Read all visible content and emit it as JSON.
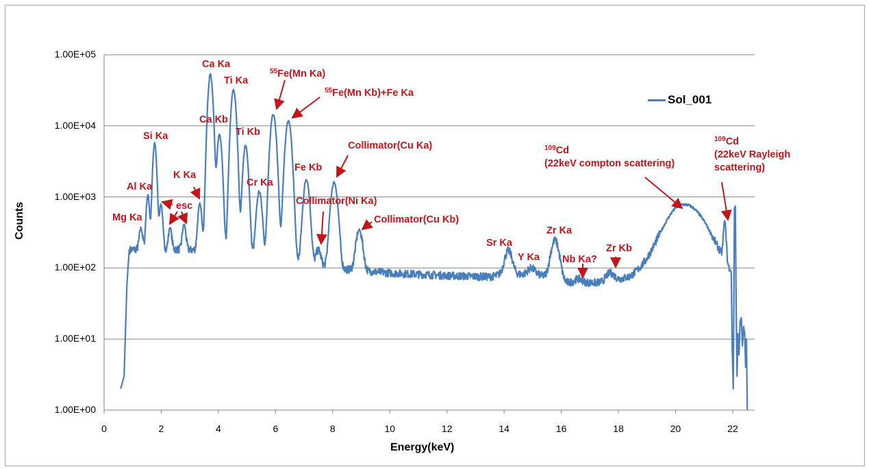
{
  "chart_data": {
    "type": "line",
    "title": "",
    "xlabel": "Energy(keV)",
    "ylabel": "Counts",
    "xscale": "linear",
    "yscale": "log",
    "xlim": [
      0,
      22.77
    ],
    "ylim": [
      1,
      100000
    ],
    "xticks": [
      "0",
      "2",
      "4",
      "6",
      "8",
      "10",
      "12",
      "14",
      "16",
      "18",
      "20",
      "22"
    ],
    "yticks": [
      "1.00E+00",
      "1.00E+01",
      "1.00E+02",
      "1.00E+03",
      "1.00E+04",
      "1.00E+05"
    ],
    "grid": "horizontal",
    "legend": {
      "placement": "top-right",
      "entries": [
        "Sol_001"
      ]
    },
    "series": [
      {
        "name": "Sol_001",
        "color": "#4a7ebb",
        "start_keV": 0.58,
        "end_keV": 21.95,
        "background": [
          [
            0.58,
            2
          ],
          [
            0.7,
            3
          ],
          [
            0.8,
            60
          ],
          [
            0.88,
            180
          ],
          [
            1.5,
            190
          ],
          [
            3,
            180
          ],
          [
            4,
            170
          ],
          [
            6,
            140
          ],
          [
            7.3,
            110
          ],
          [
            8.5,
            95
          ],
          [
            10,
            85
          ],
          [
            12,
            78
          ],
          [
            13.5,
            75
          ],
          [
            14,
            82
          ],
          [
            15.2,
            80
          ],
          [
            16.2,
            62
          ],
          [
            17.5,
            62
          ],
          [
            18.4,
            75
          ],
          [
            19,
            110
          ],
          [
            19.6,
            180
          ],
          [
            20,
            250
          ],
          [
            21,
            180
          ],
          [
            21.6,
            120
          ],
          [
            21.95,
            80
          ]
        ],
        "peaks": [
          {
            "label": "Mg Ka",
            "keV": 1.29,
            "counts": 365,
            "sigma": 0.05
          },
          {
            "label": "Al Ka",
            "keV": 1.53,
            "counts": 1050,
            "sigma": 0.05
          },
          {
            "label": "Si Ka",
            "keV": 1.77,
            "counts": 5600,
            "sigma": 0.055
          },
          {
            "label": "esc",
            "keV": 1.99,
            "counts": 790,
            "sigma": 0.05
          },
          {
            "label": "esc",
            "keV": 2.31,
            "counts": 370,
            "sigma": 0.05
          },
          {
            "label": "esc",
            "keV": 2.8,
            "counts": 410,
            "sigma": 0.055
          },
          {
            "label": "K Ka",
            "keV": 3.35,
            "counts": 790,
            "sigma": 0.06
          },
          {
            "label": "Ca Ka",
            "keV": 3.72,
            "counts": 52000,
            "sigma": 0.07
          },
          {
            "label": "Ca Kb",
            "keV": 4.04,
            "counts": 7400,
            "sigma": 0.07
          },
          {
            "label": "Ti Ka",
            "keV": 4.53,
            "counts": 32000,
            "sigma": 0.075
          },
          {
            "label": "Ti Kb",
            "keV": 4.95,
            "counts": 5200,
            "sigma": 0.075
          },
          {
            "label": "Cr Ka",
            "keV": 5.43,
            "counts": 1190,
            "sigma": 0.08
          },
          {
            "label": "55Fe(Mn Ka)",
            "keV": 5.92,
            "counts": 14800,
            "sigma": 0.085
          },
          {
            "label": "55Fe(Mn Kb)+Fe Ka",
            "keV": 6.45,
            "counts": 11600,
            "sigma": 0.09
          },
          {
            "label": "Fe Kb",
            "keV": 7.08,
            "counts": 1770,
            "sigma": 0.09
          },
          {
            "label": "Collimator(Ni Ka)",
            "keV": 7.5,
            "counts": 180,
            "sigma": 0.08
          },
          {
            "label": "Collimator(Cu Ka)",
            "keV": 8.05,
            "counts": 1600,
            "sigma": 0.1
          },
          {
            "label": "Collimator(Cu Kb)",
            "keV": 8.93,
            "counts": 340,
            "sigma": 0.1
          },
          {
            "label": "Sr Ka",
            "keV": 14.15,
            "counts": 175,
            "sigma": 0.12
          },
          {
            "label": "Y Ka",
            "keV": 14.95,
            "counts": 100,
            "sigma": 0.12
          },
          {
            "label": "Zr Ka",
            "keV": 15.78,
            "counts": 245,
            "sigma": 0.13
          },
          {
            "label": "Nb Ka?",
            "keV": 16.6,
            "counts": 70,
            "sigma": 0.13
          },
          {
            "label": "Zr Kb",
            "keV": 17.7,
            "counts": 85,
            "sigma": 0.14
          },
          {
            "label": "Compton",
            "keV": 20.35,
            "counts": 780,
            "sigma": 0.55
          },
          {
            "label": "Rayleigh",
            "keV": 21.72,
            "counts": 430,
            "sigma": 0.04
          }
        ],
        "tail": [
          [
            21.95,
            80
          ],
          [
            21.98,
            8
          ],
          [
            22.02,
            2
          ],
          [
            22.06,
            700
          ],
          [
            22.09,
            740
          ],
          [
            22.12,
            30
          ],
          [
            22.15,
            3
          ],
          [
            22.18,
            12
          ],
          [
            22.22,
            6
          ],
          [
            22.26,
            18
          ],
          [
            22.3,
            20
          ],
          [
            22.34,
            8
          ],
          [
            22.38,
            15
          ],
          [
            22.42,
            12
          ],
          [
            22.45,
            4
          ],
          [
            22.48,
            10
          ],
          [
            22.51,
            1
          ]
        ]
      }
    ]
  },
  "annotations": {
    "mg": "Mg Ka",
    "al": "Al Ka",
    "si": "Si Ka",
    "esc": "esc",
    "k": "K Ka",
    "ca_ka": "Ca Ka",
    "ca_kb": "Ca Kb",
    "ti_ka": "Ti Ka",
    "ti_kb": "Ti Kb",
    "cr": "Cr Ka",
    "mn_ka_sup": "55",
    "mn_ka": "Fe(Mn Ka)",
    "mn_kb_sup": "55",
    "mn_kb": "Fe(Mn Kb)+Fe Ka",
    "fe_kb": "Fe Kb",
    "cu_ka": "Collimator(Cu Ka)",
    "ni_ka": "Collimator(Ni Ka)",
    "cu_kb": "Collimator(Cu Kb)",
    "sr": "Sr Ka",
    "y": "Y Ka",
    "zr_ka": "Zr Ka",
    "nb": "Nb Ka?",
    "zr_kb": "Zr Kb",
    "compton_sup": "109",
    "compton_1": "Cd",
    "compton_2": "(22keV compton scattering)",
    "rayleigh_sup": "109",
    "rayleigh_1": "Cd",
    "rayleigh_2": "(22keV Rayleigh",
    "rayleigh_3": "scattering)"
  }
}
